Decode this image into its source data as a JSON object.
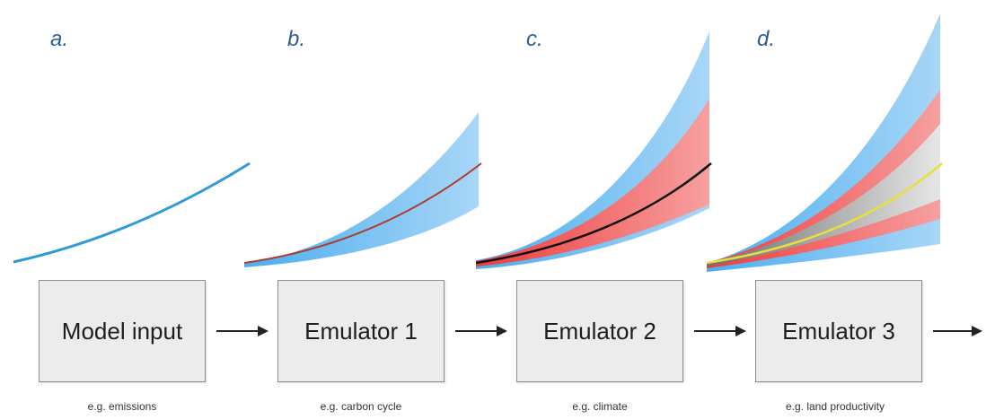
{
  "panels": [
    {
      "letter": "a.",
      "label": "Model input",
      "caption": "e.g. emissions"
    },
    {
      "letter": "b.",
      "label": "Emulator 1",
      "caption": "e.g. carbon cycle"
    },
    {
      "letter": "c.",
      "label": "Emulator 2",
      "caption": "e.g. climate"
    },
    {
      "letter": "d.",
      "label": "Emulator 3",
      "caption": "e.g. land productivity"
    }
  ],
  "colors": {
    "input_line": "#2f9bd6",
    "band_blue": "#4aaef0",
    "band_blue_light": "#a8d6f7",
    "band_red": "#f03a3a",
    "band_red_light": "#f6a0a0",
    "band_grey": "#8a8a8a",
    "band_grey_light": "#dedede",
    "line_red": "#b03a2e",
    "line_black": "#111111",
    "line_yellow": "#e8e03a",
    "letter": "#2c5d93",
    "arrow": "#222222"
  }
}
